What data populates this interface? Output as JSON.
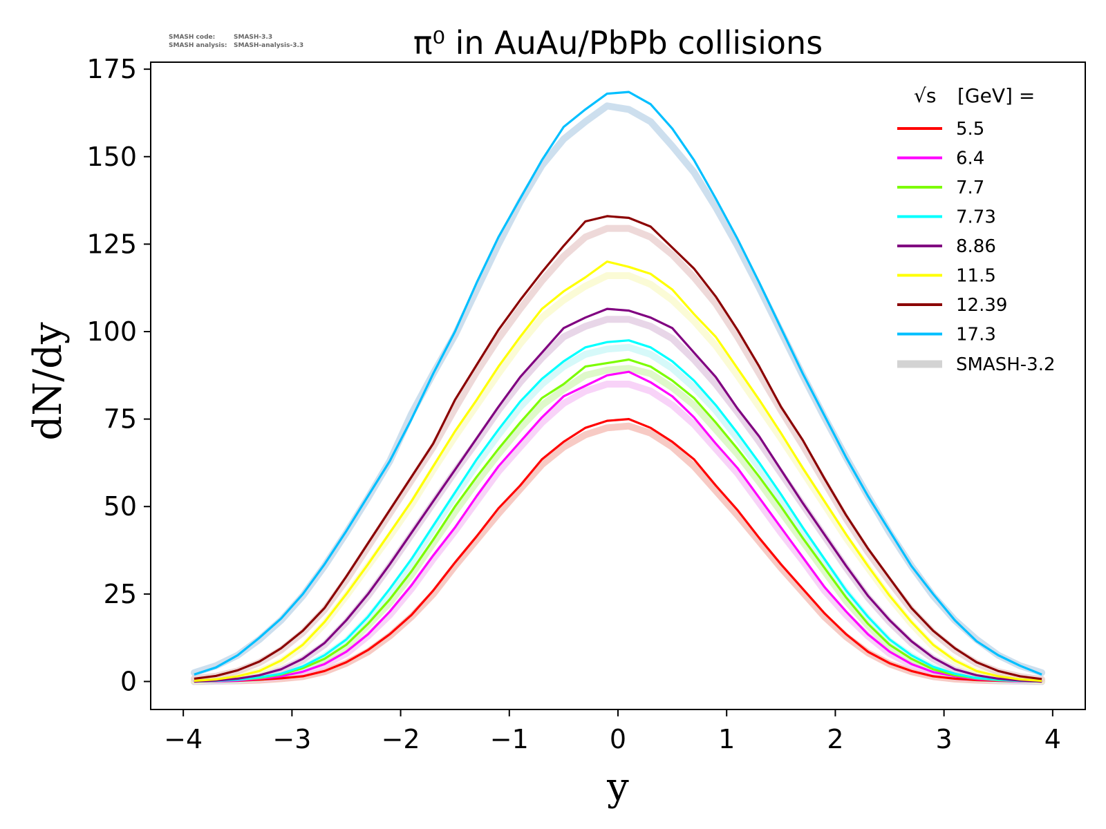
{
  "meta": {
    "code_label": "SMASH code:",
    "code_value": "SMASH-3.3",
    "analysis_label": "SMASH analysis:",
    "analysis_value": "SMASH-analysis-3.3"
  },
  "chart_data": {
    "type": "line",
    "title": "π⁰ in AuAu/PbPb collisions",
    "xlabel": "y",
    "ylabel": "dN/dy",
    "xlim": [
      -4.3,
      4.3
    ],
    "ylim": [
      -8,
      177
    ],
    "xticks": [
      -4,
      -3,
      -2,
      -1,
      0,
      1,
      2,
      3,
      4
    ],
    "xtick_labels": [
      "−4",
      "−3",
      "−2",
      "−1",
      "0",
      "1",
      "2",
      "3",
      "4"
    ],
    "yticks": [
      0,
      25,
      50,
      75,
      100,
      125,
      150,
      175
    ],
    "ytick_labels": [
      "0",
      "25",
      "50",
      "75",
      "100",
      "125",
      "150",
      "175"
    ],
    "grid": false,
    "legend": {
      "placement": "top-right",
      "title_prefix": "√s",
      "title_suffix": "[GeV] =",
      "reference_label": "SMASH-3.2",
      "reference_color": "#d3d3d3"
    },
    "x": [
      -3.9,
      -3.7,
      -3.5,
      -3.3,
      -3.1,
      -2.9,
      -2.7,
      -2.5,
      -2.3,
      -2.1,
      -1.9,
      -1.7,
      -1.5,
      -1.3,
      -1.1,
      -0.9,
      -0.7,
      -0.5,
      -0.3,
      -0.1,
      0.1,
      0.3,
      0.5,
      0.7,
      0.9,
      1.1,
      1.3,
      1.5,
      1.7,
      1.9,
      2.1,
      2.3,
      2.5,
      2.7,
      2.9,
      3.1,
      3.3,
      3.5,
      3.7,
      3.9
    ],
    "series": [
      {
        "name": "5.5",
        "color": "#ff0000",
        "ref_color": "#f4b8b0",
        "values": [
          0.0,
          0.1,
          0.2,
          0.5,
          0.9,
          1.5,
          3.0,
          5.5,
          9.0,
          13.5,
          19.0,
          26.0,
          34.0,
          41.5,
          49.5,
          56.0,
          63.5,
          68.5,
          72.5,
          74.5,
          75.0,
          72.5,
          68.5,
          63.5,
          56.0,
          49.0,
          41.0,
          33.5,
          26.5,
          19.5,
          13.5,
          8.5,
          5.2,
          3.0,
          1.5,
          0.8,
          0.4,
          0.2,
          0.1,
          0.0
        ],
        "ref_values": [
          0.0,
          0.1,
          0.2,
          0.4,
          0.8,
          1.4,
          2.8,
          5.2,
          8.5,
          13.0,
          18.5,
          25.0,
          33.0,
          40.5,
          48.0,
          55.0,
          62.0,
          67.0,
          70.5,
          72.5,
          73.0,
          71.0,
          67.0,
          61.5,
          54.5,
          47.5,
          40.0,
          32.5,
          25.5,
          18.5,
          12.8,
          8.2,
          5.0,
          2.8,
          1.4,
          0.7,
          0.4,
          0.2,
          0.1,
          0.0
        ]
      },
      {
        "name": "6.4",
        "color": "#ff00ff",
        "ref_color": "#f5c4f5",
        "values": [
          0.0,
          0.1,
          0.3,
          0.8,
          1.5,
          2.8,
          5.0,
          8.5,
          13.5,
          20.0,
          27.5,
          36.0,
          44.0,
          53.0,
          61.5,
          68.5,
          75.5,
          81.5,
          84.5,
          87.5,
          88.5,
          85.5,
          81.5,
          75.5,
          68.0,
          61.0,
          52.5,
          44.0,
          35.5,
          27.0,
          20.0,
          13.5,
          8.5,
          5.0,
          2.7,
          1.5,
          0.7,
          0.3,
          0.1,
          0.0
        ],
        "ref_values": [
          0.0,
          0.1,
          0.3,
          0.7,
          1.4,
          2.6,
          4.7,
          8.0,
          13.0,
          19.0,
          26.5,
          35.0,
          43.0,
          51.5,
          60.0,
          67.0,
          74.0,
          79.5,
          83.0,
          85.0,
          85.0,
          83.0,
          79.0,
          73.5,
          66.5,
          59.5,
          51.0,
          42.5,
          34.5,
          26.0,
          19.0,
          13.0,
          8.0,
          4.7,
          2.6,
          1.4,
          0.7,
          0.3,
          0.1,
          0.0
        ]
      },
      {
        "name": "7.7",
        "color": "#7cfc00",
        "ref_color": "#d4f5b8",
        "values": [
          0.0,
          0.2,
          0.5,
          1.0,
          2.0,
          3.8,
          6.5,
          10.5,
          16.5,
          23.5,
          31.5,
          40.5,
          50.0,
          58.5,
          66.5,
          74.0,
          81.0,
          85.0,
          90.0,
          91.0,
          92.0,
          90.0,
          86.0,
          81.0,
          74.0,
          66.5,
          58.5,
          50.0,
          41.0,
          32.5,
          24.0,
          16.5,
          10.5,
          6.5,
          3.5,
          1.8,
          0.9,
          0.4,
          0.2,
          0.0
        ],
        "ref_values": [
          0.0,
          0.2,
          0.4,
          0.9,
          1.8,
          3.5,
          6.2,
          10.0,
          16.0,
          22.5,
          30.5,
          39.5,
          48.5,
          57.0,
          65.0,
          72.5,
          79.0,
          83.5,
          87.5,
          89.0,
          89.5,
          88.0,
          84.0,
          79.0,
          72.0,
          65.0,
          57.0,
          48.5,
          40.0,
          31.5,
          23.0,
          16.0,
          10.0,
          6.2,
          3.3,
          1.7,
          0.8,
          0.4,
          0.2,
          0.0
        ]
      },
      {
        "name": "7.73",
        "color": "#00ffff",
        "ref_color": "#c8f7f7",
        "values": [
          0.0,
          0.2,
          0.5,
          1.2,
          2.2,
          4.3,
          7.5,
          12.0,
          18.5,
          26.5,
          35.0,
          44.5,
          54.0,
          63.5,
          72.0,
          80.0,
          86.5,
          91.5,
          95.5,
          97.0,
          97.5,
          95.5,
          91.5,
          86.0,
          79.0,
          71.0,
          62.5,
          53.5,
          44.0,
          35.0,
          26.0,
          18.5,
          12.0,
          7.5,
          4.2,
          2.2,
          1.0,
          0.5,
          0.2,
          0.0
        ],
        "ref_values": [
          0.0,
          0.2,
          0.5,
          1.1,
          2.1,
          4.0,
          7.2,
          11.5,
          18.0,
          25.5,
          34.0,
          43.5,
          53.0,
          62.0,
          70.5,
          78.5,
          85.0,
          90.0,
          93.5,
          95.0,
          95.5,
          93.5,
          89.5,
          84.0,
          77.5,
          69.5,
          61.0,
          52.0,
          43.0,
          34.0,
          25.5,
          18.0,
          11.5,
          7.2,
          4.0,
          2.0,
          1.0,
          0.5,
          0.2,
          0.0
        ]
      },
      {
        "name": "8.86",
        "color": "#800080",
        "ref_color": "#e0c8e0",
        "values": [
          0.0,
          0.3,
          0.8,
          1.8,
          3.5,
          6.5,
          11.0,
          17.5,
          25.0,
          33.5,
          42.5,
          51.5,
          60.5,
          69.5,
          78.5,
          87.0,
          94.0,
          101.0,
          104.0,
          106.5,
          106.0,
          104.0,
          101.0,
          94.0,
          87.0,
          78.0,
          70.0,
          60.5,
          51.0,
          42.0,
          33.0,
          24.5,
          17.5,
          11.5,
          6.8,
          3.5,
          1.8,
          0.8,
          0.3,
          0.0
        ],
        "ref_values": [
          0.0,
          0.3,
          0.8,
          1.7,
          3.3,
          6.2,
          10.5,
          17.0,
          24.5,
          33.0,
          42.0,
          51.0,
          60.0,
          68.5,
          77.5,
          85.5,
          92.5,
          98.5,
          101.5,
          103.5,
          103.5,
          101.5,
          98.0,
          92.0,
          85.0,
          77.0,
          68.5,
          59.5,
          50.5,
          41.5,
          32.5,
          24.0,
          17.0,
          11.0,
          6.5,
          3.3,
          1.7,
          0.8,
          0.3,
          0.0
        ]
      },
      {
        "name": "11.5",
        "color": "#ffff00",
        "ref_color": "#fafac8",
        "values": [
          0.2,
          0.6,
          1.5,
          3.0,
          6.0,
          10.5,
          17.0,
          25.0,
          33.5,
          42.5,
          51.5,
          61.5,
          71.5,
          80.5,
          90.0,
          98.5,
          106.5,
          111.5,
          115.5,
          120.0,
          118.5,
          116.5,
          112.0,
          105.0,
          98.5,
          89.5,
          80.5,
          71.0,
          61.0,
          51.5,
          42.0,
          33.0,
          24.5,
          17.0,
          10.5,
          6.0,
          3.0,
          1.5,
          0.6,
          0.2
        ],
        "ref_values": [
          0.2,
          0.6,
          1.4,
          2.8,
          5.7,
          10.0,
          16.5,
          24.5,
          33.0,
          41.5,
          50.5,
          60.5,
          70.0,
          79.0,
          88.0,
          96.5,
          104.0,
          109.0,
          113.0,
          116.0,
          116.0,
          113.5,
          109.0,
          103.0,
          96.0,
          87.5,
          78.5,
          69.5,
          60.0,
          50.5,
          41.0,
          32.5,
          24.0,
          16.5,
          10.0,
          5.7,
          2.8,
          1.4,
          0.6,
          0.2
        ]
      },
      {
        "name": "12.39",
        "color": "#8b0000",
        "ref_color": "#e8cccc",
        "values": [
          0.8,
          1.6,
          3.2,
          5.7,
          9.5,
          14.5,
          21.0,
          30.0,
          39.5,
          49.0,
          58.5,
          68.0,
          80.5,
          90.5,
          100.5,
          109.0,
          117.0,
          124.5,
          131.5,
          133.0,
          132.5,
          130.0,
          124.0,
          118.0,
          110.0,
          100.5,
          90.0,
          78.5,
          69.0,
          58.0,
          47.5,
          38.0,
          29.5,
          21.0,
          14.5,
          9.5,
          5.5,
          3.0,
          1.5,
          0.7
        ],
        "ref_values": [
          0.8,
          1.5,
          3.0,
          5.4,
          9.0,
          14.0,
          20.5,
          29.0,
          38.5,
          48.0,
          57.5,
          67.0,
          78.0,
          88.5,
          98.0,
          106.5,
          114.5,
          121.5,
          127.0,
          129.5,
          129.5,
          127.0,
          122.0,
          115.5,
          108.0,
          98.5,
          88.0,
          77.5,
          67.5,
          57.0,
          46.5,
          37.0,
          28.5,
          20.5,
          14.0,
          9.0,
          5.2,
          2.8,
          1.4,
          0.6
        ]
      },
      {
        "name": "17.3",
        "color": "#00bfff",
        "ref_color": "#bcd4e8",
        "values": [
          2.0,
          4.0,
          7.5,
          12.5,
          18.0,
          25.0,
          33.5,
          43.0,
          53.0,
          63.0,
          75.0,
          88.0,
          100.0,
          114.0,
          127.0,
          138.0,
          149.0,
          158.5,
          163.5,
          168.0,
          168.5,
          165.0,
          158.0,
          149.0,
          138.0,
          126.5,
          114.0,
          101.0,
          88.0,
          76.0,
          64.0,
          53.0,
          43.0,
          33.0,
          25.0,
          17.5,
          11.5,
          7.5,
          4.5,
          2.0
        ],
        "ref_values": [
          2.5,
          4.5,
          7.5,
          12.0,
          17.5,
          24.5,
          33.0,
          42.5,
          52.5,
          63.0,
          76.5,
          88.0,
          99.0,
          112.0,
          125.0,
          137.0,
          147.5,
          155.0,
          160.0,
          164.5,
          163.5,
          160.0,
          153.0,
          145.5,
          135.5,
          124.5,
          112.5,
          100.0,
          87.5,
          75.5,
          64.0,
          53.0,
          42.5,
          33.0,
          24.5,
          17.5,
          12.0,
          7.5,
          4.5,
          2.5
        ]
      }
    ]
  }
}
